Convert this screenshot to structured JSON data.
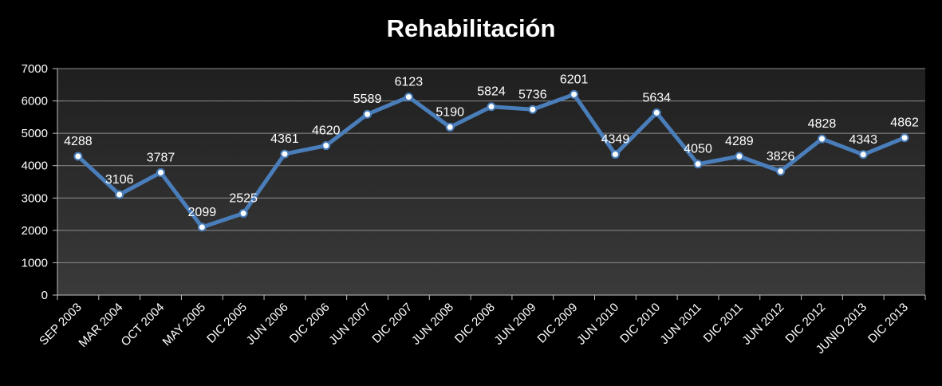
{
  "chart_data": {
    "type": "line",
    "title": "Rehabilitación",
    "xlabel": "",
    "ylabel": "",
    "ylim": [
      0,
      7000
    ],
    "yticks": [
      0,
      1000,
      2000,
      3000,
      4000,
      5000,
      6000,
      7000
    ],
    "grid": true,
    "legend": "none",
    "categories": [
      "SEP 2003",
      "MAR 2004",
      "OCT 2004",
      "MAY 2005",
      "DIC 2005",
      "JUN 2006",
      "DIC 2006",
      "JUN 2007",
      "DIC 2007",
      "JUN 2008",
      "DIC 2008",
      "JUN 2009",
      "DIC 2009",
      "JUN 2010",
      "DIC 2010",
      "JUN 2011",
      "DIC 2011",
      "JUN 2012",
      "DIC 2012",
      "JUNIO 2013",
      "DIC 2013"
    ],
    "series": [
      {
        "values": [
          4288,
          3106,
          3787,
          2099,
          2525,
          4361,
          4620,
          5589,
          6123,
          5190,
          5824,
          5736,
          6201,
          4349,
          5634,
          4050,
          4289,
          3826,
          4828,
          4343,
          4862
        ]
      }
    ],
    "colors": {
      "background": "#000000",
      "plot_area": "#2b2b2b",
      "line": "#4a7ebb",
      "grid": "#8c8c8c",
      "text": "#ffffff"
    }
  }
}
